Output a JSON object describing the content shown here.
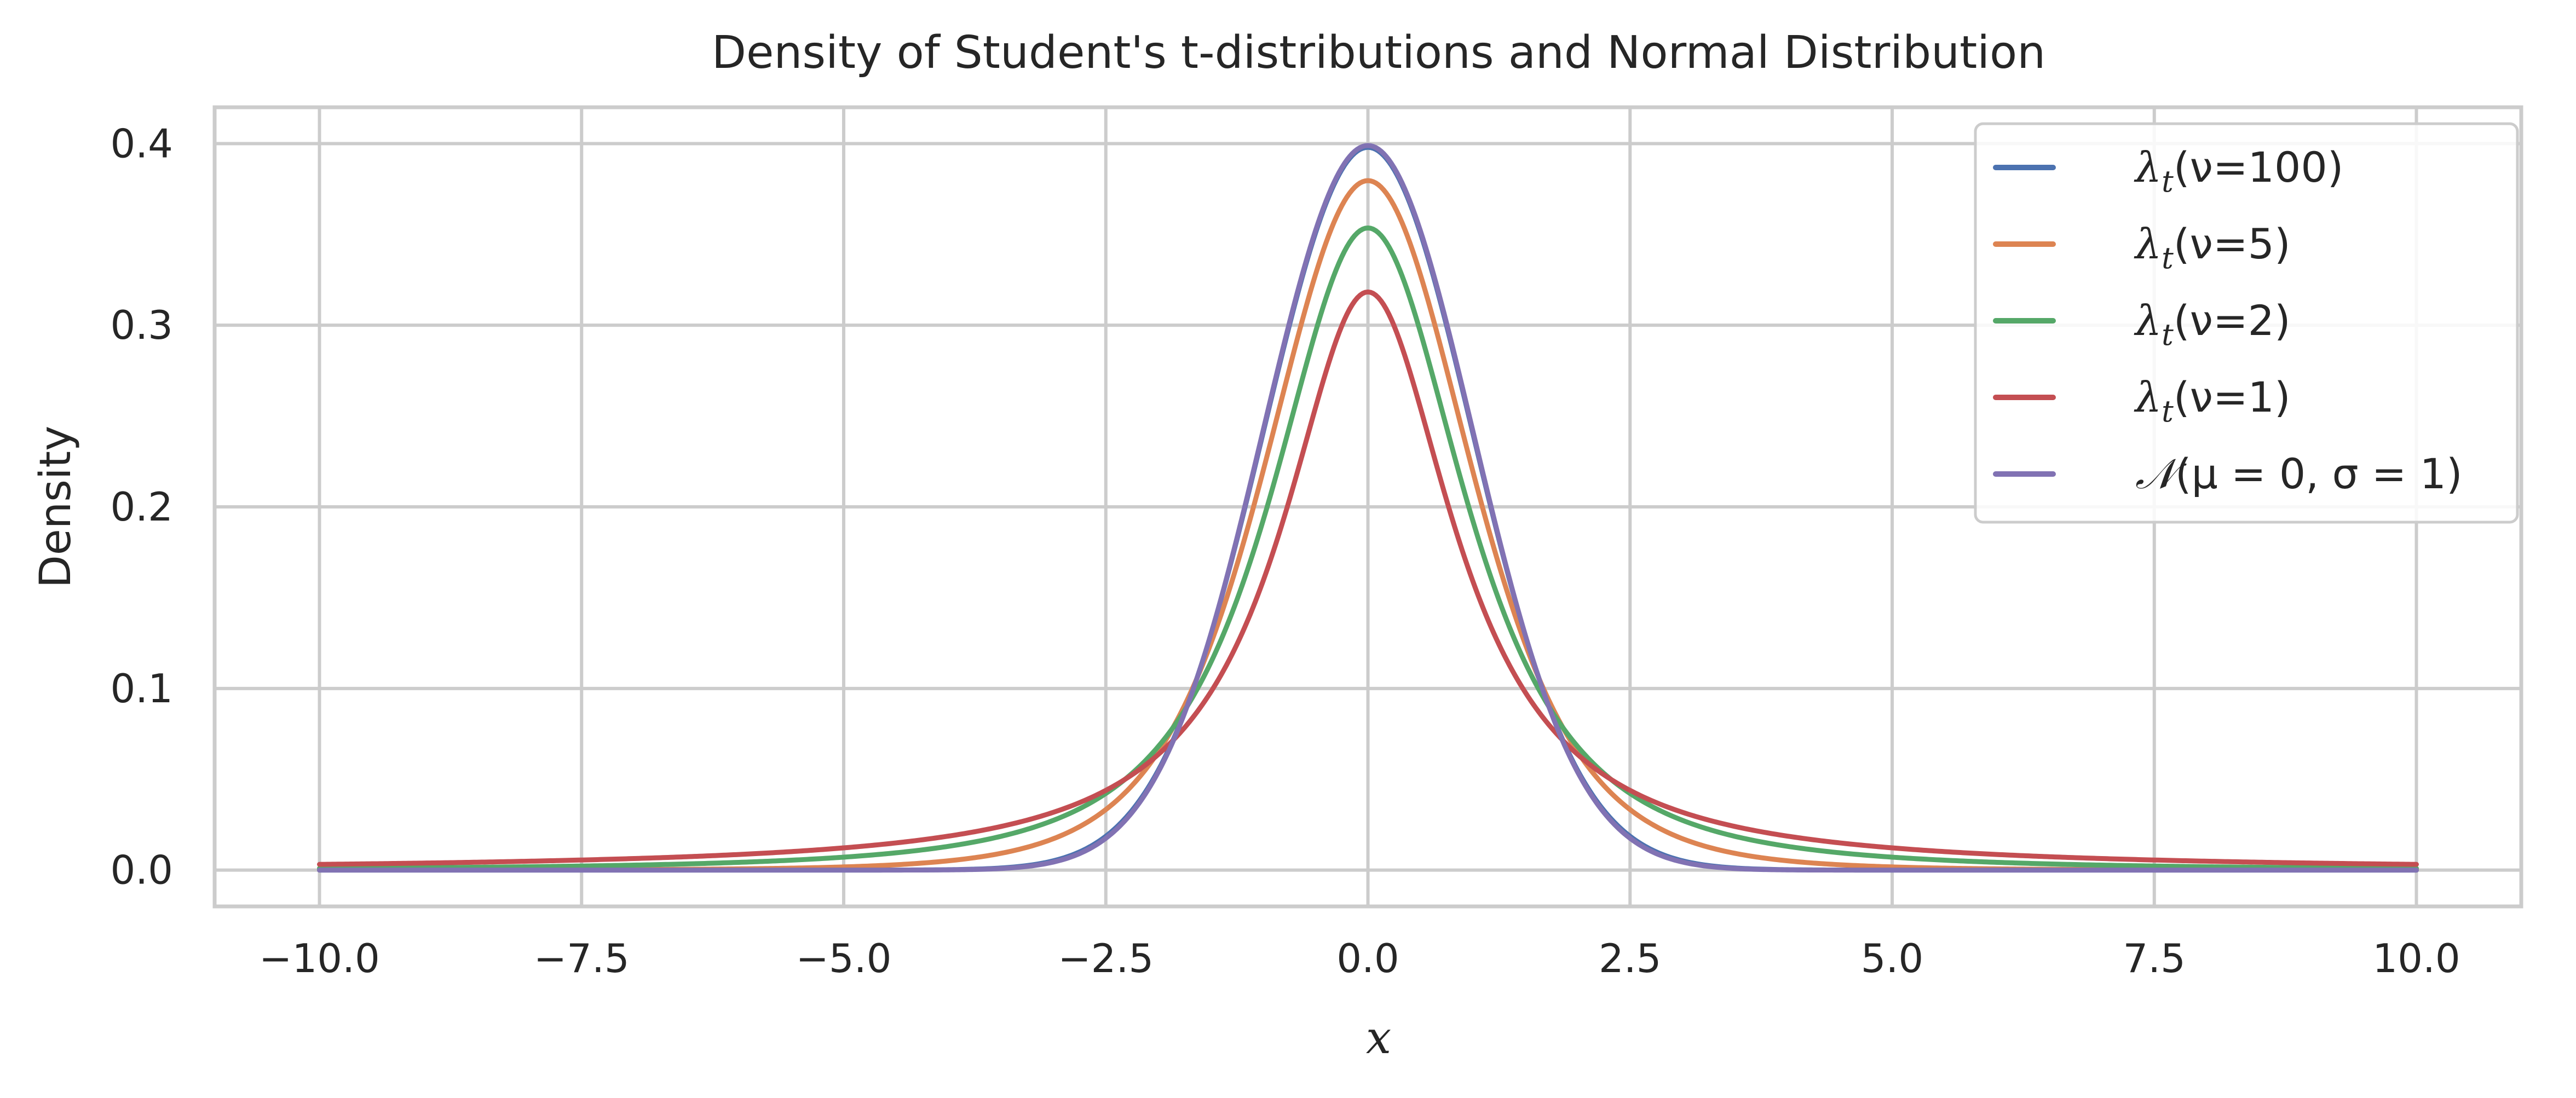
{
  "chart_data": {
    "type": "line",
    "title": "Density of Student's t-distributions and Normal Distribution",
    "xlabel": "x",
    "ylabel": "Density",
    "xlim": [
      -11,
      11
    ],
    "ylim": [
      -0.02,
      0.42
    ],
    "xticks": [
      -10.0,
      -7.5,
      -5.0,
      -2.5,
      0.0,
      2.5,
      5.0,
      7.5,
      10.0
    ],
    "xtick_labels": [
      "−10.0",
      "−7.5",
      "−5.0",
      "−2.5",
      "0.0",
      "2.5",
      "5.0",
      "7.5",
      "10.0"
    ],
    "yticks": [
      0.0,
      0.1,
      0.2,
      0.3,
      0.4
    ],
    "ytick_labels": [
      "0.0",
      "0.1",
      "0.2",
      "0.3",
      "0.4"
    ],
    "grid": true,
    "legend_position": "upper-right",
    "x_range": [
      -10,
      10
    ],
    "series": [
      {
        "name": "λ_t(ν=100)",
        "label_base": "λ",
        "label_sub": "t",
        "label_rest": "(ν=100)",
        "distribution": "t",
        "df": 100,
        "color": "#4c72b0"
      },
      {
        "name": "λ_t(ν=5)",
        "label_base": "λ",
        "label_sub": "t",
        "label_rest": "(ν=5)",
        "distribution": "t",
        "df": 5,
        "color": "#dd8452"
      },
      {
        "name": "λ_t(ν=2)",
        "label_base": "λ",
        "label_sub": "t",
        "label_rest": "(ν=2)",
        "distribution": "t",
        "df": 2,
        "color": "#55a868"
      },
      {
        "name": "λ_t(ν=1)",
        "label_base": "λ",
        "label_sub": "t",
        "label_rest": "(ν=1)",
        "distribution": "t",
        "df": 1,
        "color": "#c44e52"
      },
      {
        "name": "𝒩(μ = 0, σ = 1)",
        "label_base": "𝒩",
        "label_sub": "",
        "label_rest": "(μ = 0, σ = 1)",
        "distribution": "normal",
        "mu": 0,
        "sigma": 1,
        "color": "#8172b3"
      }
    ]
  }
}
